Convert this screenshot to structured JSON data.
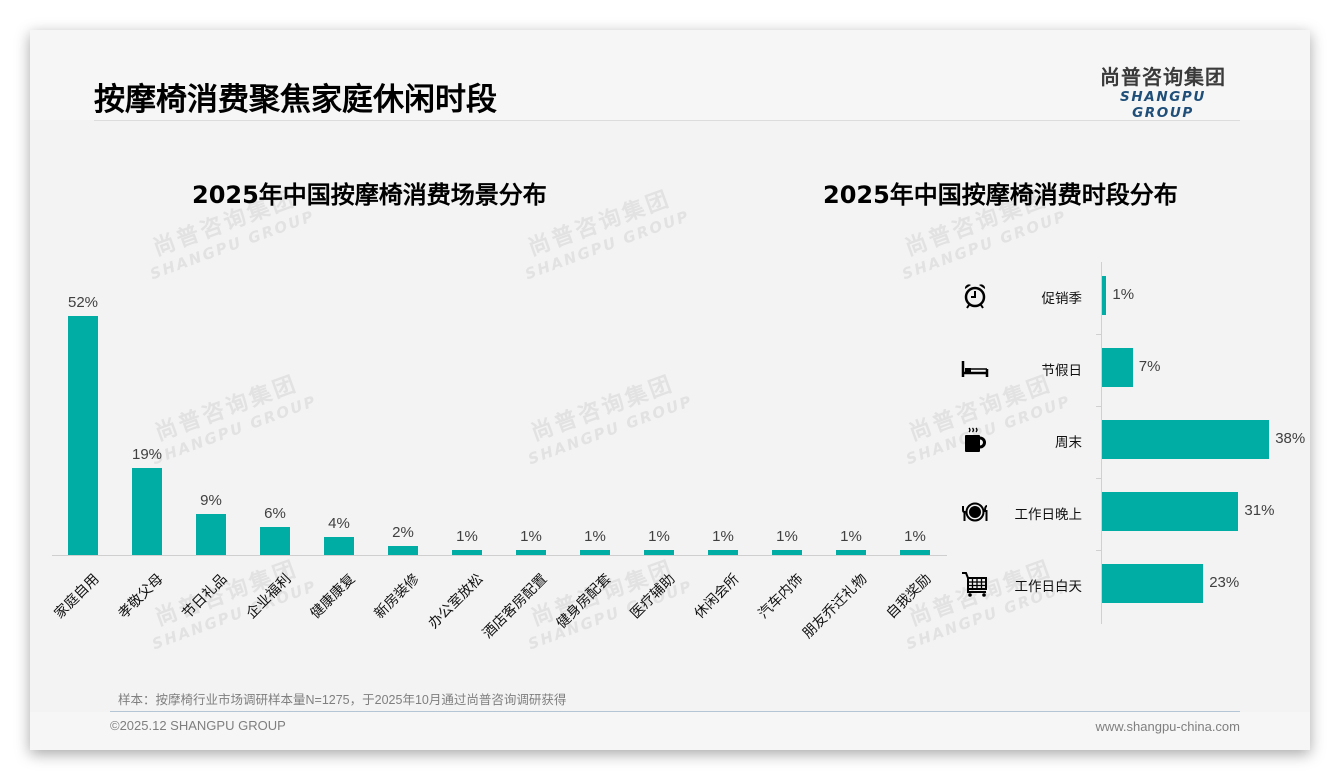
{
  "page": {
    "title": "按摩椅消费聚焦家庭休闲时段",
    "logo_cn": "尚普咨询集团",
    "logo_en": "SHANGPU GROUP",
    "watermark_cn": "尚普咨询集团",
    "watermark_en": "SHANGPU GROUP",
    "note": "样本：按摩椅行业市场调研样本量N=1275，于2025年10月通过尚普咨询调研获得",
    "copyright": "©2025.12 SHANGPU GROUP",
    "website": "www.shangpu-china.com",
    "accent_color": "#00ada5"
  },
  "chart_data": [
    {
      "type": "bar",
      "orientation": "vertical",
      "title": "2025年中国按摩椅消费场景分布",
      "categories": [
        "家庭自用",
        "孝敬父母",
        "节日礼品",
        "企业福利",
        "健康康复",
        "新房装修",
        "办公室放松",
        "酒店客房配置",
        "健身房配套",
        "医疗辅助",
        "休闲会所",
        "汽车内饰",
        "朋友乔迁礼物",
        "自我奖励"
      ],
      "values": [
        52,
        19,
        9,
        6,
        4,
        2,
        1,
        1,
        1,
        1,
        1,
        1,
        1,
        1
      ],
      "value_labels": [
        "52%",
        "19%",
        "9%",
        "6%",
        "4%",
        "2%",
        "1%",
        "1%",
        "1%",
        "1%",
        "1%",
        "1%",
        "1%",
        "1%"
      ],
      "unit": "%",
      "xlabel": "",
      "ylabel": "",
      "grid": false,
      "legend": "none",
      "color": "#00ada5"
    },
    {
      "type": "bar",
      "orientation": "horizontal",
      "title": "2025年中国按摩椅消费时段分布",
      "categories": [
        "促销季",
        "节假日",
        "周末",
        "工作日晚上",
        "工作日白天"
      ],
      "values": [
        1,
        7,
        38,
        31,
        23
      ],
      "value_labels": [
        "1%",
        "7%",
        "38%",
        "31%",
        "23%"
      ],
      "icons": [
        "alarm-clock-icon",
        "bed-icon",
        "coffee-mug-icon",
        "plate-cutlery-icon",
        "shopping-cart-icon"
      ],
      "unit": "%",
      "grid": false,
      "legend": "none",
      "color": "#00ada5"
    }
  ]
}
